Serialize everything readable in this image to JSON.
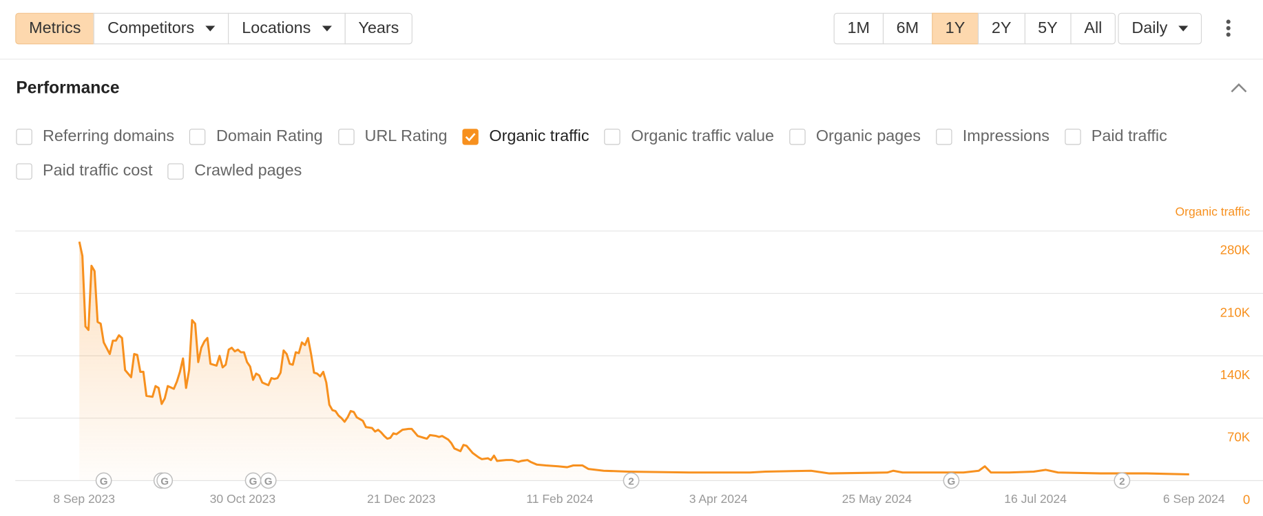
{
  "toolbar": {
    "left_buttons": [
      {
        "label": "Metrics",
        "active": true
      },
      {
        "label": "Competitors",
        "dropdown": true
      },
      {
        "label": "Locations",
        "dropdown": true
      },
      {
        "label": "Years"
      }
    ],
    "range_buttons": [
      {
        "label": "1M"
      },
      {
        "label": "6M"
      },
      {
        "label": "1Y",
        "active": true
      },
      {
        "label": "2Y"
      },
      {
        "label": "5Y"
      },
      {
        "label": "All"
      }
    ],
    "interval": {
      "label": "Daily",
      "dropdown": true
    }
  },
  "section": {
    "title": "Performance"
  },
  "metrics": [
    [
      {
        "label": "Referring domains",
        "checked": false
      },
      {
        "label": "Domain Rating",
        "checked": false
      },
      {
        "label": "URL Rating",
        "checked": false
      },
      {
        "label": "Organic traffic",
        "checked": true
      },
      {
        "label": "Organic traffic value",
        "checked": false
      },
      {
        "label": "Organic pages",
        "checked": false
      },
      {
        "label": "Impressions",
        "checked": false
      },
      {
        "label": "Paid traffic",
        "checked": false
      }
    ],
    [
      {
        "label": "Paid traffic cost",
        "checked": false
      },
      {
        "label": "Crawled pages",
        "checked": false
      }
    ]
  ],
  "chart_data": {
    "type": "line",
    "x": [
      "2023-09-08",
      "2023-09-09",
      "2023-09-10",
      "2023-09-11",
      "2023-09-12",
      "2023-09-13",
      "2023-09-14",
      "2023-09-15",
      "2023-09-16",
      "2023-09-18",
      "2023-09-19",
      "2023-09-20",
      "2023-09-21",
      "2023-09-22",
      "2023-09-23",
      "2023-09-25",
      "2023-09-26",
      "2023-09-27",
      "2023-09-28",
      "2023-09-29",
      "2023-09-30",
      "2023-10-02",
      "2023-10-03",
      "2023-10-04",
      "2023-10-05",
      "2023-10-06",
      "2023-10-07",
      "2023-10-09",
      "2023-10-10",
      "2023-10-11",
      "2023-10-12",
      "2023-10-13",
      "2023-10-14",
      "2023-10-15",
      "2023-10-16",
      "2023-10-17",
      "2023-10-18",
      "2023-10-19",
      "2023-10-20",
      "2023-10-21",
      "2023-10-23",
      "2023-10-24",
      "2023-10-25",
      "2023-10-26",
      "2023-10-27",
      "2023-10-28",
      "2023-10-29",
      "2023-10-30",
      "2023-10-31",
      "2023-11-01",
      "2023-11-02",
      "2023-11-03",
      "2023-11-04",
      "2023-11-05",
      "2023-11-06",
      "2023-11-07",
      "2023-11-09",
      "2023-11-10",
      "2023-11-11",
      "2023-11-12",
      "2023-11-13",
      "2023-11-14",
      "2023-11-15",
      "2023-11-16",
      "2023-11-17",
      "2023-11-18",
      "2023-11-19",
      "2023-11-20",
      "2023-11-21",
      "2023-11-22",
      "2023-11-23",
      "2023-11-24",
      "2023-11-25",
      "2023-11-26",
      "2023-11-27",
      "2023-11-28",
      "2023-11-29",
      "2023-11-30",
      "2023-12-01",
      "2023-12-02",
      "2023-12-03",
      "2023-12-04",
      "2023-12-05",
      "2023-12-06",
      "2023-12-07",
      "2023-12-08",
      "2023-12-09",
      "2023-12-10",
      "2023-12-11",
      "2023-12-13",
      "2023-12-14",
      "2023-12-15",
      "2023-12-16",
      "2023-12-17",
      "2023-12-18",
      "2023-12-19",
      "2023-12-20",
      "2023-12-21",
      "2023-12-23",
      "2023-12-25",
      "2023-12-26",
      "2023-12-27",
      "2023-12-28",
      "2023-12-30",
      "2023-12-31",
      "2024-01-01",
      "2024-01-03",
      "2024-01-04",
      "2024-01-05",
      "2024-01-07",
      "2024-01-08",
      "2024-01-09",
      "2024-01-11",
      "2024-01-12",
      "2024-01-13",
      "2024-01-15",
      "2024-01-17",
      "2024-01-18",
      "2024-01-20",
      "2024-01-21",
      "2024-01-22",
      "2024-01-23",
      "2024-01-26",
      "2024-01-28",
      "2024-01-30",
      "2024-01-31",
      "2024-02-02",
      "2024-02-03",
      "2024-02-05",
      "2024-02-08",
      "2024-02-12",
      "2024-02-15",
      "2024-02-17",
      "2024-02-20",
      "2024-02-22",
      "2024-02-27",
      "2024-03-06",
      "2024-03-26",
      "2024-04-05",
      "2024-04-15",
      "2024-04-20",
      "2024-05-05",
      "2024-05-11",
      "2024-05-30",
      "2024-06-01",
      "2024-06-04",
      "2024-06-24",
      "2024-06-29",
      "2024-07-01",
      "2024-07-03",
      "2024-07-09",
      "2024-07-17",
      "2024-07-21",
      "2024-07-25",
      "2024-08-08",
      "2024-08-23",
      "2024-09-06"
    ],
    "series": [
      {
        "name": "Organic traffic",
        "color": "#f7901e",
        "values": [
          268000,
          252000,
          173000,
          169000,
          241000,
          235000,
          178000,
          176000,
          155000,
          142000,
          157000,
          157000,
          163000,
          160000,
          124000,
          116000,
          142000,
          141000,
          122000,
          122000,
          95000,
          94000,
          106000,
          104000,
          86000,
          92000,
          106000,
          103000,
          111000,
          122000,
          137000,
          104000,
          124000,
          180000,
          176000,
          133000,
          149000,
          156000,
          160000,
          131000,
          129000,
          140000,
          127000,
          130000,
          147000,
          149000,
          145000,
          147000,
          144000,
          144000,
          133000,
          128000,
          113000,
          120000,
          118000,
          110000,
          107000,
          115000,
          114000,
          115000,
          121000,
          146000,
          142000,
          131000,
          130000,
          144000,
          143000,
          155000,
          152000,
          160000,
          142000,
          121000,
          120000,
          117000,
          122000,
          110000,
          85000,
          79000,
          78000,
          73000,
          70000,
          66000,
          71000,
          78000,
          77000,
          71000,
          69000,
          67000,
          60000,
          59000,
          55000,
          57000,
          54000,
          50000,
          47000,
          48000,
          53000,
          52000,
          57000,
          58000,
          58000,
          54000,
          50000,
          48000,
          47000,
          51000,
          50000,
          49000,
          50000,
          46000,
          42000,
          36000,
          33000,
          40000,
          39000,
          31000,
          26000,
          24000,
          25000,
          23000,
          28000,
          22000,
          23000,
          23000,
          21000,
          22000,
          23000,
          21000,
          18000,
          17000,
          16000,
          15000,
          17000,
          17000,
          13000,
          11000,
          10000,
          9000,
          9000,
          9000,
          10000,
          11000,
          8000,
          9000,
          11000,
          9000,
          9000,
          11000,
          16000,
          9000,
          9000,
          10000,
          12000,
          9000,
          8000,
          8000,
          7000
        ]
      }
    ],
    "xlim": [
      "2023-08-18",
      "2024-09-26"
    ],
    "xticks": [
      {
        "value": "2023-09-08",
        "label": "8 Sep 2023"
      },
      {
        "value": "2023-10-30",
        "label": "30 Oct 2023"
      },
      {
        "value": "2023-12-21",
        "label": "21 Dec 2023"
      },
      {
        "value": "2024-02-11",
        "label": "11 Feb 2024"
      },
      {
        "value": "2024-04-03",
        "label": "3 Apr 2024"
      },
      {
        "value": "2024-05-25",
        "label": "25 May 2024"
      },
      {
        "value": "2024-07-16",
        "label": "16 Jul 2024"
      },
      {
        "value": "2024-09-06",
        "label": "6 Sep 2024"
      }
    ],
    "ylim": [
      0,
      280000
    ],
    "yticks": [
      0,
      {
        "value": 70000,
        "label": "70K"
      },
      {
        "value": 140000,
        "label": "140K"
      },
      {
        "value": 210000,
        "label": "210K"
      },
      {
        "value": 280000,
        "label": "280K"
      }
    ],
    "grid": true,
    "annotations": [
      {
        "x": "2023-09-16",
        "label": "G"
      },
      {
        "x": "2023-10-05",
        "label": "G"
      },
      {
        "x": "2023-10-06",
        "label": "G"
      },
      {
        "x": "2023-11-04",
        "label": "G"
      },
      {
        "x": "2023-11-09",
        "label": "G"
      },
      {
        "x": "2024-03-07",
        "label": "2"
      },
      {
        "x": "2024-06-20",
        "label": "G"
      },
      {
        "x": "2024-08-15",
        "label": "2"
      }
    ]
  }
}
